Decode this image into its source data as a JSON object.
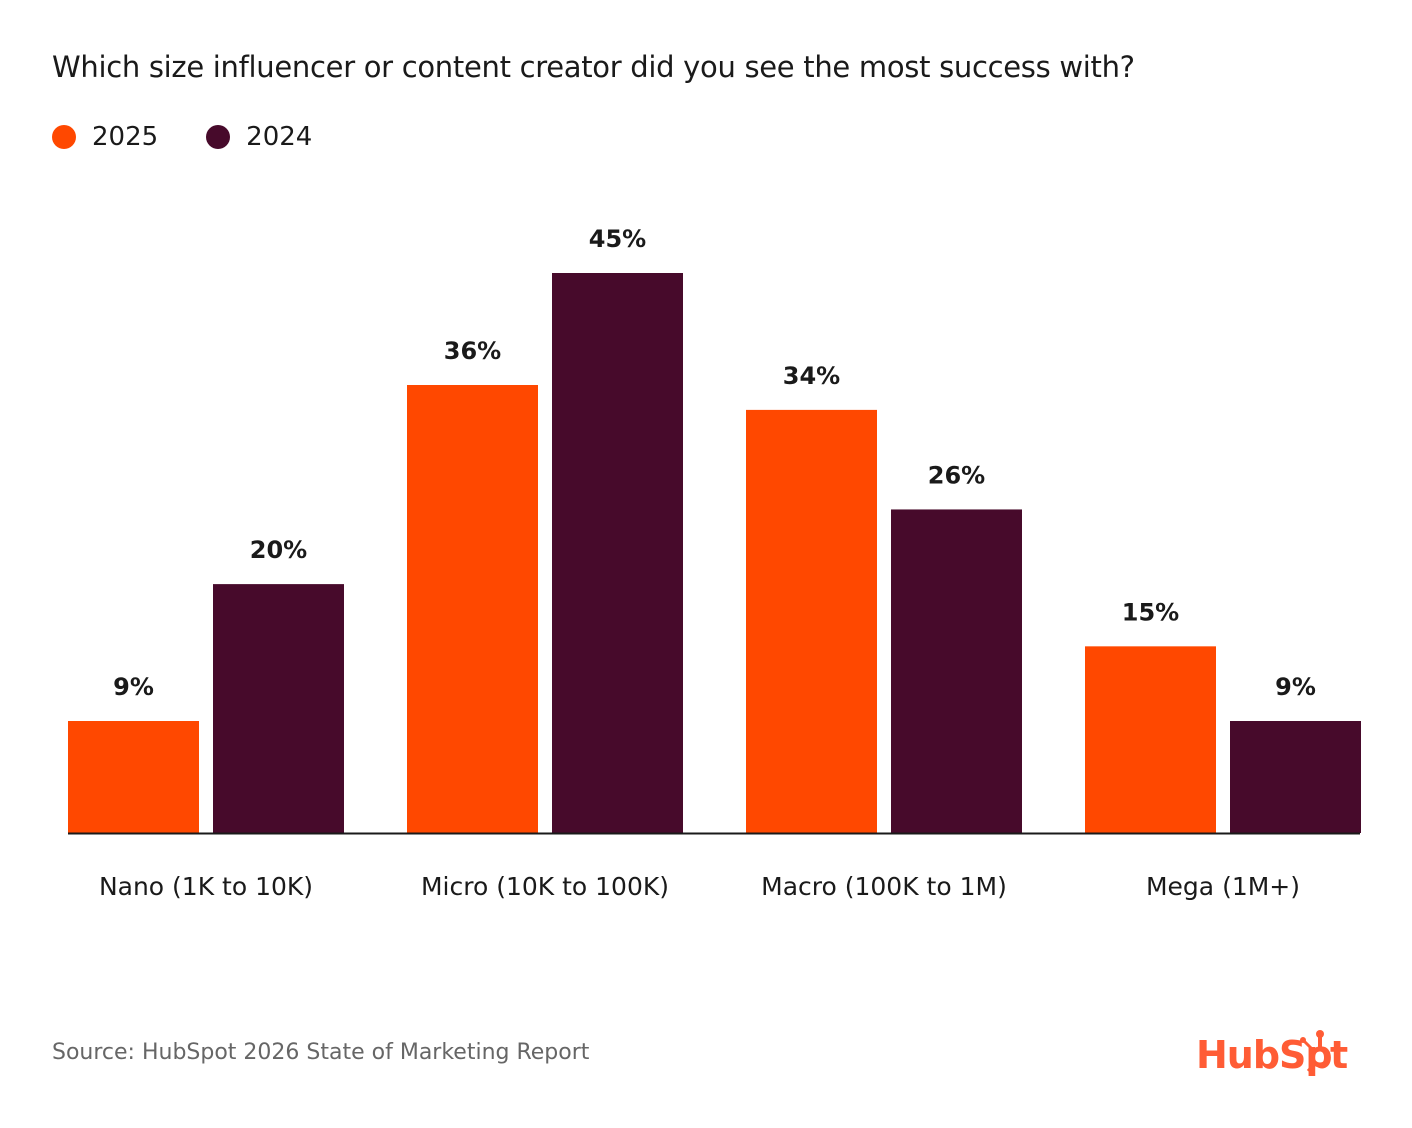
{
  "chart_data": {
    "type": "bar",
    "title": "Which size influencer or content creator did you see the most success with?",
    "categories": [
      "Nano (1K to 10K)",
      "Micro (10K to 100K)",
      "Macro (100K to 1M)",
      "Mega (1M+)"
    ],
    "series": [
      {
        "name": "2025",
        "values": [
          9,
          36,
          34,
          15
        ],
        "labels": [
          "9%",
          "36%",
          "34%",
          "15%"
        ],
        "color": "#FF4800"
      },
      {
        "name": "2024",
        "values": [
          20,
          45,
          26,
          9
        ],
        "labels": [
          "20%",
          "45%",
          "26%",
          "9%"
        ],
        "color": "#470A2B"
      }
    ],
    "ylim": [
      0,
      45
    ],
    "grid": false,
    "legend": "top-left",
    "value_unit": "%"
  },
  "source": "Source: HubSpot 2026 State of Marketing Report",
  "logo": "HubSpot"
}
